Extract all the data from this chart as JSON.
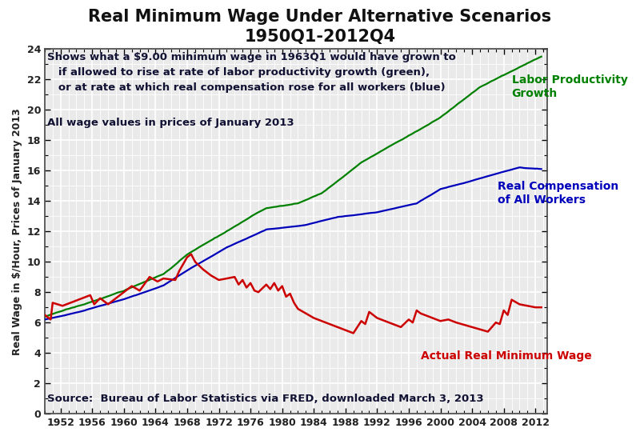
{
  "title_line1": "Real Minimum Wage Under Alternative Scenarios",
  "title_line2": "1950Q1-2012Q4",
  "ylabel": "Real Wage in $/Hour, Prices of January 2013",
  "source_text": "Source:  Bureau of Labor Statistics via FRED, downloaded March 3, 2013",
  "annotation_line1": "― Shows what a $9.00 minimum wage in 1963Q1 would have grown to",
  "annotation_line2": "      if allowed to rise at rate of labor productivity growth (green),",
  "annotation_line3": "      or at rate at which real compensation rose for all workers (blue)",
  "annotation_line4": "All wage values in prices of January 2013",
  "label_green": "Labor Productivity\nGrowth",
  "label_blue": "Real Compensation\nof All Workers",
  "label_red": "Actual Real Minimum Wage",
  "color_green": "#008000",
  "color_blue": "#0000BB",
  "color_red": "#CC0000",
  "xlim": [
    1950.0,
    2013.5
  ],
  "ylim": [
    0,
    24
  ],
  "xticks": [
    1952,
    1956,
    1960,
    1964,
    1968,
    1972,
    1976,
    1980,
    1984,
    1988,
    1992,
    1996,
    2000,
    2004,
    2008,
    2012
  ],
  "yticks": [
    0,
    2,
    4,
    6,
    8,
    10,
    12,
    14,
    16,
    18,
    20,
    22,
    24
  ],
  "bg_color": "#EAEAEA",
  "grid_color": "#FFFFFF",
  "title_fontsize": 15,
  "axis_label_fontsize": 9,
  "tick_fontsize": 9,
  "annotation_fontsize": 9.5,
  "label_fontsize": 10
}
